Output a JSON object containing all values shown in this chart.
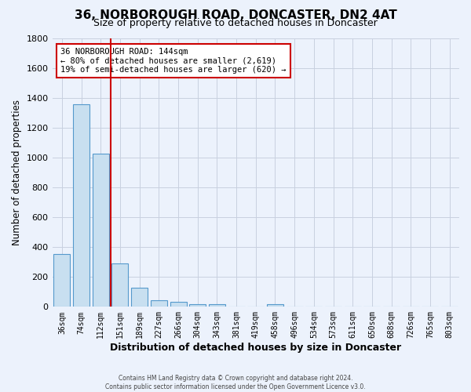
{
  "title": "36, NORBOROUGH ROAD, DONCASTER, DN2 4AT",
  "subtitle": "Size of property relative to detached houses in Doncaster",
  "xlabel": "Distribution of detached houses by size in Doncaster",
  "ylabel": "Number of detached properties",
  "bin_labels": [
    "36sqm",
    "74sqm",
    "112sqm",
    "151sqm",
    "189sqm",
    "227sqm",
    "266sqm",
    "304sqm",
    "343sqm",
    "381sqm",
    "419sqm",
    "458sqm",
    "496sqm",
    "534sqm",
    "573sqm",
    "611sqm",
    "650sqm",
    "688sqm",
    "726sqm",
    "765sqm",
    "803sqm"
  ],
  "bar_values": [
    355,
    1360,
    1025,
    290,
    130,
    45,
    35,
    15,
    15,
    0,
    0,
    20,
    0,
    0,
    0,
    0,
    0,
    0,
    0,
    0,
    0
  ],
  "bar_color": "#C8DFF0",
  "bar_edge_color": "#5599CC",
  "background_color": "#ECF2FC",
  "grid_color": "#C8D0E0",
  "property_line_color": "#CC0000",
  "annotation_title": "36 NORBOROUGH ROAD: 144sqm",
  "annotation_line1": "← 80% of detached houses are smaller (2,619)",
  "annotation_line2": "19% of semi-detached houses are larger (620) →",
  "annotation_box_color": "#FFFFFF",
  "annotation_box_edge": "#CC0000",
  "ylim": [
    0,
    1800
  ],
  "yticks": [
    0,
    200,
    400,
    600,
    800,
    1000,
    1200,
    1400,
    1600,
    1800
  ],
  "footer1": "Contains HM Land Registry data © Crown copyright and database right 2024.",
  "footer2": "Contains public sector information licensed under the Open Government Licence v3.0."
}
